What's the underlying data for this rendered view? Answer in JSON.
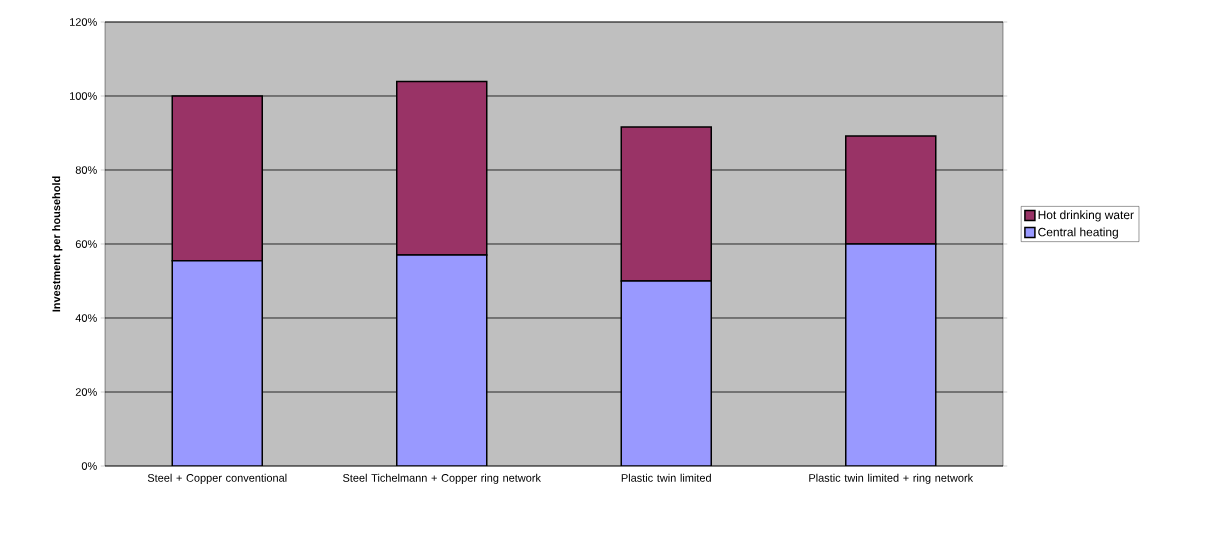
{
  "chart_data": {
    "type": "bar",
    "stacked": true,
    "ylabel": "Investment per household",
    "categories": [
      "Steel + Copper conventional",
      "Steel Tichelmann + Copper ring network",
      "Plastic twin limited",
      "Plastic twin limited + ring network"
    ],
    "series": [
      {
        "name": "Central heating",
        "color": "#9999ff",
        "values": [
          55.5,
          57,
          50,
          60
        ]
      },
      {
        "name": "Hot drinking water",
        "color": "#993366",
        "values": [
          44.5,
          46.9,
          41.6,
          29.2
        ]
      }
    ],
    "ylim": [
      0,
      120
    ],
    "yticks": [
      {
        "value": 0,
        "label": "0%"
      },
      {
        "value": 20,
        "label": "20%"
      },
      {
        "value": 40,
        "label": "40%"
      },
      {
        "value": 60,
        "label": "60%"
      },
      {
        "value": 80,
        "label": "80%"
      },
      {
        "value": 100,
        "label": "100%"
      },
      {
        "value": 120,
        "label": "120%"
      }
    ],
    "grid": "y",
    "legend": "right"
  }
}
